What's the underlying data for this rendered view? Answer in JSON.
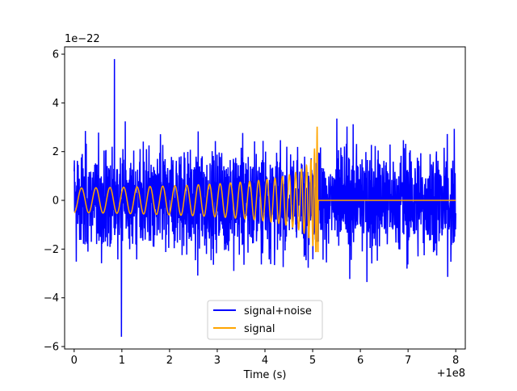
{
  "chart_data": {
    "type": "line",
    "title": "",
    "xlabel": "Time (s)",
    "ylabel": "",
    "x_offset_label": "+1e8",
    "y_scale_label": "1e−22",
    "xlim": [
      -0.2,
      8.2
    ],
    "ylim": [
      -6.1,
      6.3
    ],
    "x_ticks": [
      0,
      1,
      2,
      3,
      4,
      5,
      6,
      7,
      8
    ],
    "x_tick_labels": [
      "0",
      "1",
      "2",
      "3",
      "4",
      "5",
      "6",
      "7",
      "8"
    ],
    "y_ticks": [
      -6,
      -4,
      -2,
      0,
      2,
      4,
      6
    ],
    "y_tick_labels": [
      "−6",
      "−4",
      "−2",
      "0",
      "2",
      "4",
      "6"
    ],
    "grid": false,
    "legend_position": "bottom-center",
    "series": [
      {
        "name": "signal+noise",
        "color": "#0000ff",
        "x_range": [
          0,
          8
        ],
        "typical_amplitude": 2.3,
        "peak_max": 5.8,
        "peak_min": -5.6,
        "description_values_approx": true
      },
      {
        "name": "signal",
        "color": "#ffa500",
        "x_range": [
          0,
          8
        ],
        "initial_amplitude": 0.5,
        "merger_time": 5.12,
        "peak_positive": 3.0,
        "peak_negative": -2.1,
        "post_merger_value": 0.0
      }
    ]
  }
}
